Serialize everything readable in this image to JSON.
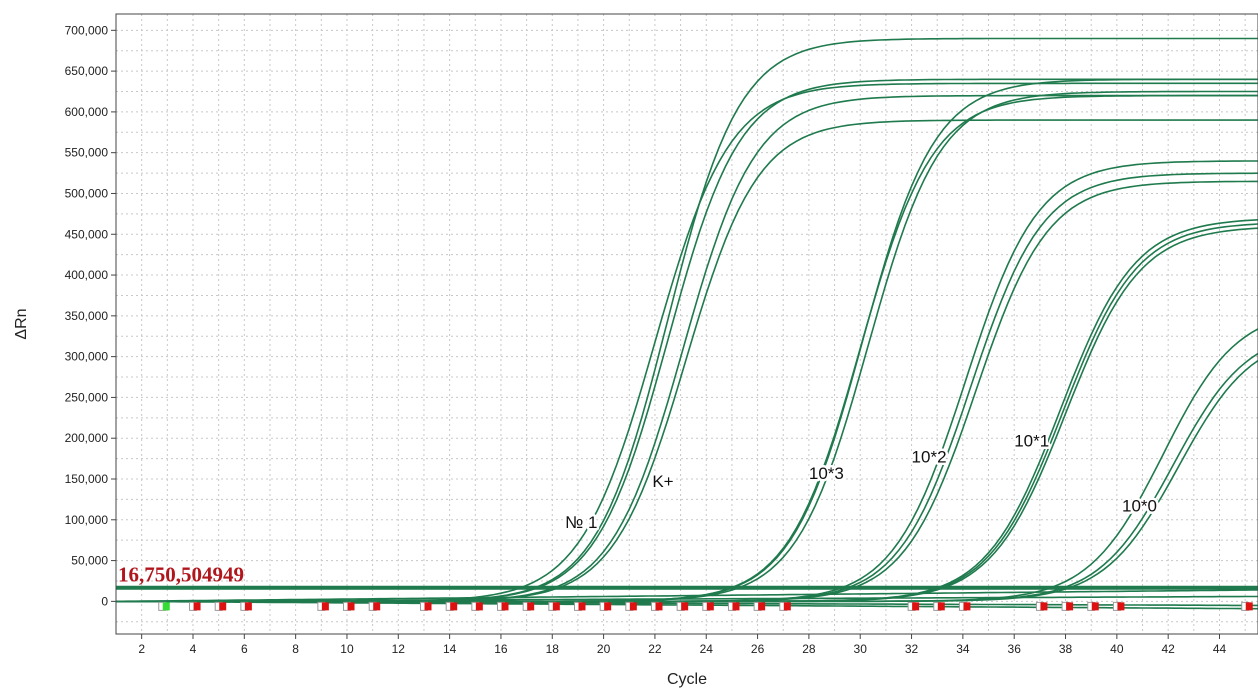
{
  "chart_data": {
    "type": "line",
    "title": "",
    "xlabel": "Cycle",
    "ylabel": "ΔRn",
    "xlim": [
      1,
      45.5
    ],
    "ylim": [
      -40000,
      720000
    ],
    "grid": true,
    "x_ticks": [
      2,
      4,
      6,
      8,
      10,
      12,
      14,
      16,
      18,
      20,
      22,
      24,
      26,
      28,
      30,
      32,
      34,
      36,
      38,
      40,
      42,
      44
    ],
    "y_ticks": [
      0,
      50000,
      100000,
      150000,
      200000,
      250000,
      300000,
      350000,
      400000,
      450000,
      500000,
      550000,
      600000,
      650000,
      700000
    ],
    "y_tick_labels": [
      "0",
      "50,000",
      "100,000",
      "150,000",
      "200,000",
      "250,000",
      "300,000",
      "350,000",
      "400,000",
      "450,000",
      "500,000",
      "550,000",
      "600,000",
      "650,000",
      "700,000"
    ],
    "threshold": {
      "value": 16750.504949,
      "label": "16,750,504949",
      "color": "#b0161c"
    },
    "curve_color": "#1f7a4d",
    "series": [
      {
        "label": "№ 1",
        "label_at": [
          18.5,
          90000
        ],
        "curves": [
          {
            "max": 690000,
            "mid": 22.5,
            "slope": 1.4,
            "drift": 0
          },
          {
            "max": 640000,
            "mid": 22.5,
            "slope": 1.4,
            "drift": 0
          },
          {
            "max": 635000,
            "mid": 22.0,
            "slope": 1.45,
            "drift": 0
          }
        ]
      },
      {
        "label": "K+",
        "label_at": [
          21.9,
          140000
        ],
        "curves": [
          {
            "max": 620000,
            "mid": 23.1,
            "slope": 1.4,
            "drift": 0
          },
          {
            "max": 590000,
            "mid": 23.2,
            "slope": 1.4,
            "drift": 0
          }
        ]
      },
      {
        "label": "10*3",
        "label_at": [
          28.0,
          150000
        ],
        "curves": [
          {
            "max": 640000,
            "mid": 30.1,
            "slope": 1.4,
            "drift": 0
          },
          {
            "max": 625000,
            "mid": 30.3,
            "slope": 1.4,
            "drift": 0
          },
          {
            "max": 620000,
            "mid": 30.0,
            "slope": 1.4,
            "drift": 0
          }
        ]
      },
      {
        "label": "10*2",
        "label_at": [
          32.0,
          170000
        ],
        "curves": [
          {
            "max": 540000,
            "mid": 34.1,
            "slope": 1.4,
            "drift": 0
          },
          {
            "max": 525000,
            "mid": 34.3,
            "slope": 1.4,
            "drift": 0
          },
          {
            "max": 515000,
            "mid": 34.5,
            "slope": 1.4,
            "drift": 0
          }
        ]
      },
      {
        "label": "10*1",
        "label_at": [
          36.0,
          190000
        ],
        "curves": [
          {
            "max": 470000,
            "mid": 37.8,
            "slope": 1.45,
            "drift": 0
          },
          {
            "max": 465000,
            "mid": 37.9,
            "slope": 1.45,
            "drift": 0
          },
          {
            "max": 460000,
            "mid": 38.0,
            "slope": 1.45,
            "drift": 0
          }
        ]
      },
      {
        "label": "10*0",
        "label_at": [
          40.2,
          110000
        ],
        "curves": [
          {
            "max": 360000,
            "mid": 41.8,
            "slope": 1.45,
            "drift": 0
          },
          {
            "max": 335000,
            "mid": 42.2,
            "slope": 1.45,
            "drift": 0
          },
          {
            "max": 330000,
            "mid": 42.4,
            "slope": 1.45,
            "drift": 0
          }
        ]
      },
      {
        "label": "",
        "curves": [
          {
            "max": 0,
            "mid": 0,
            "slope": 1,
            "drift": 14000
          },
          {
            "max": 0,
            "mid": 0,
            "slope": 1,
            "drift": 6000
          },
          {
            "max": 0,
            "mid": 0,
            "slope": 1,
            "drift": -5000
          },
          {
            "max": 0,
            "mid": 0,
            "slope": 1,
            "drift": -9000
          }
        ]
      }
    ],
    "cycle_markers": [
      {
        "x": 2.9,
        "color": "#33dd33"
      },
      {
        "x": 4.1,
        "color": "#dd1111"
      },
      {
        "x": 5.1,
        "color": "#dd1111"
      },
      {
        "x": 6.1,
        "color": "#dd1111"
      },
      {
        "x": 9.1,
        "color": "#dd1111"
      },
      {
        "x": 10.1,
        "color": "#dd1111"
      },
      {
        "x": 11.1,
        "color": "#dd1111"
      },
      {
        "x": 13.1,
        "color": "#dd1111"
      },
      {
        "x": 14.1,
        "color": "#dd1111"
      },
      {
        "x": 15.1,
        "color": "#dd1111"
      },
      {
        "x": 16.1,
        "color": "#dd1111"
      },
      {
        "x": 17.1,
        "color": "#dd1111"
      },
      {
        "x": 18.1,
        "color": "#dd1111"
      },
      {
        "x": 19.1,
        "color": "#dd1111"
      },
      {
        "x": 20.1,
        "color": "#dd1111"
      },
      {
        "x": 21.1,
        "color": "#dd1111"
      },
      {
        "x": 22.1,
        "color": "#dd1111"
      },
      {
        "x": 23.1,
        "color": "#dd1111"
      },
      {
        "x": 24.1,
        "color": "#dd1111"
      },
      {
        "x": 25.1,
        "color": "#dd1111"
      },
      {
        "x": 26.1,
        "color": "#dd1111"
      },
      {
        "x": 27.1,
        "color": "#dd1111"
      },
      {
        "x": 32.1,
        "color": "#dd1111"
      },
      {
        "x": 33.1,
        "color": "#dd1111"
      },
      {
        "x": 34.1,
        "color": "#dd1111"
      },
      {
        "x": 37.1,
        "color": "#dd1111"
      },
      {
        "x": 38.1,
        "color": "#dd1111"
      },
      {
        "x": 39.1,
        "color": "#dd1111"
      },
      {
        "x": 40.1,
        "color": "#dd1111"
      },
      {
        "x": 45.1,
        "color": "#dd1111"
      }
    ]
  }
}
